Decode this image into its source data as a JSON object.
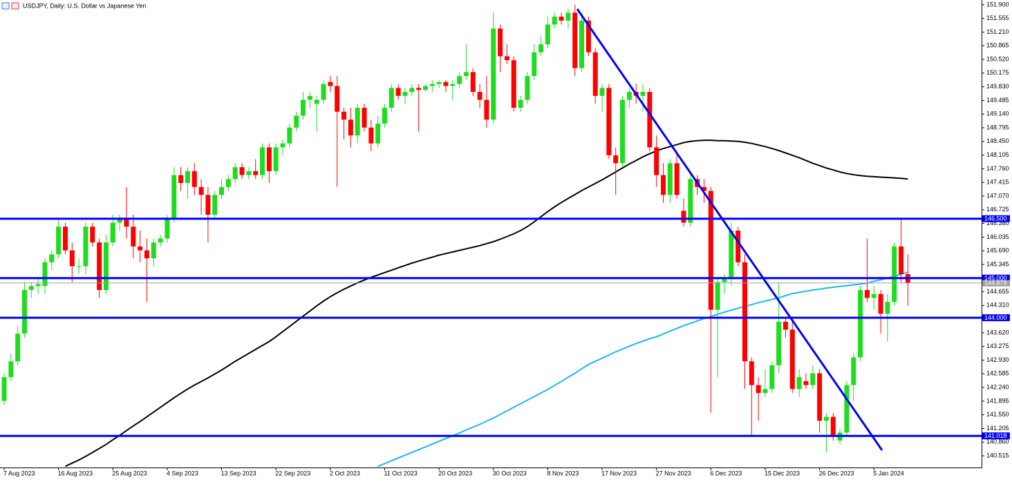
{
  "chart_data": {
    "type": "candlestick",
    "title": "USDJPY, Daily:  U.S. Dollar vs Japanese Yen",
    "up_color": "#1fdc1f",
    "down_color": "#ff0000",
    "ylim": [
      140.22,
      152.02
    ],
    "yticks": [
      {
        "value": 151.9,
        "label": "151.900"
      },
      {
        "value": 151.555,
        "label": "151.555"
      },
      {
        "value": 151.21,
        "label": "151.210"
      },
      {
        "value": 150.865,
        "label": "150.865"
      },
      {
        "value": 150.52,
        "label": "150.520"
      },
      {
        "value": 150.175,
        "label": "150.175"
      },
      {
        "value": 149.83,
        "label": "149.830"
      },
      {
        "value": 149.485,
        "label": "149.485"
      },
      {
        "value": 149.14,
        "label": "149.140"
      },
      {
        "value": 148.795,
        "label": "148.795"
      },
      {
        "value": 148.45,
        "label": "148.450"
      },
      {
        "value": 148.105,
        "label": "148.105"
      },
      {
        "value": 147.76,
        "label": "147.760"
      },
      {
        "value": 147.415,
        "label": "147.415"
      },
      {
        "value": 147.07,
        "label": "147.070"
      },
      {
        "value": 146.725,
        "label": "146.725"
      },
      {
        "value": 146.38,
        "label": "146.380"
      },
      {
        "value": 146.035,
        "label": "146.035"
      },
      {
        "value": 145.69,
        "label": "145.690"
      },
      {
        "value": 145.345,
        "label": "145.345"
      },
      {
        "value": 144.655,
        "label": "144.655"
      },
      {
        "value": 144.31,
        "label": "144.310"
      },
      {
        "value": 143.62,
        "label": "143.620"
      },
      {
        "value": 143.275,
        "label": "143.275"
      },
      {
        "value": 142.93,
        "label": "142.930"
      },
      {
        "value": 142.585,
        "label": "142.585"
      },
      {
        "value": 142.24,
        "label": "142.240"
      },
      {
        "value": 141.895,
        "label": "141.895"
      },
      {
        "value": 141.55,
        "label": "141.550"
      },
      {
        "value": 141.205,
        "label": "141.205"
      },
      {
        "value": 140.86,
        "label": "140.860"
      },
      {
        "value": 140.515,
        "label": "140.515"
      }
    ],
    "levels": [
      {
        "value": 146.5,
        "label": "146.500",
        "color": "#0000ff"
      },
      {
        "value": 145.0,
        "label": "145.000",
        "color": "#0000ff"
      },
      {
        "value": 144.0,
        "label": "144.000",
        "color": "#0000ff"
      },
      {
        "value": 141.018,
        "label": "141.018",
        "color": "#0000ff"
      }
    ],
    "last_price": {
      "value": 144.879,
      "label": "144.879",
      "color": "#a0a0a0"
    },
    "categories": [
      "7 Aug 2023",
      null,
      null,
      null,
      null,
      null,
      null,
      null,
      "16 Aug 2023",
      null,
      null,
      null,
      null,
      null,
      null,
      null,
      "25 Aug 2023",
      null,
      null,
      null,
      null,
      null,
      null,
      null,
      "4 Sep 2023",
      null,
      null,
      null,
      null,
      null,
      null,
      null,
      "13 Sep 2023",
      null,
      null,
      null,
      null,
      null,
      null,
      null,
      "22 Sep 2023",
      null,
      null,
      null,
      null,
      null,
      null,
      null,
      "2 Oct 2023",
      null,
      null,
      null,
      null,
      null,
      null,
      null,
      "11 Oct 2023",
      null,
      null,
      null,
      null,
      null,
      null,
      null,
      "20 Oct 2023",
      null,
      null,
      null,
      null,
      null,
      null,
      null,
      "30 Oct 2023",
      null,
      null,
      null,
      null,
      null,
      null,
      null,
      "8 Nov 2023",
      null,
      null,
      null,
      null,
      null,
      null,
      null,
      "17 Nov 2023",
      null,
      null,
      null,
      null,
      null,
      null,
      null,
      "27 Nov 2023",
      null,
      null,
      null,
      null,
      null,
      null,
      null,
      "6 Dec 2023",
      null,
      null,
      null,
      null,
      null,
      null,
      null,
      "15 Dec 2023",
      null,
      null,
      null,
      null,
      null,
      null,
      null,
      "26 Dec 2023",
      null,
      null,
      null,
      null,
      null,
      null,
      null,
      "5 Jan 2024",
      null,
      null,
      null,
      null,
      null
    ],
    "candles": [
      [
        141.9,
        142.6,
        141.8,
        142.5
      ],
      [
        142.5,
        143.1,
        142.4,
        142.9
      ],
      [
        142.9,
        143.8,
        142.8,
        143.6
      ],
      [
        143.6,
        144.9,
        143.5,
        144.7
      ],
      [
        144.7,
        144.9,
        144.5,
        144.8
      ],
      [
        144.8,
        145.0,
        144.6,
        144.85
      ],
      [
        144.8,
        145.5,
        144.6,
        145.4
      ],
      [
        145.4,
        145.7,
        145.2,
        145.6
      ],
      [
        145.6,
        146.5,
        145.5,
        146.3
      ],
      [
        146.3,
        146.4,
        145.6,
        145.7
      ],
      [
        145.7,
        145.9,
        144.9,
        145.3
      ],
      [
        145.3,
        145.5,
        145.1,
        145.3
      ],
      [
        145.3,
        146.4,
        145.1,
        146.3
      ],
      [
        146.3,
        146.4,
        145.8,
        145.9
      ],
      [
        145.9,
        146.0,
        144.5,
        144.7
      ],
      [
        144.7,
        146.1,
        144.6,
        145.9
      ],
      [
        145.9,
        146.6,
        145.8,
        146.4
      ],
      [
        146.4,
        146.6,
        146.2,
        146.5
      ],
      [
        146.5,
        147.3,
        146.0,
        146.3
      ],
      [
        146.3,
        146.6,
        145.5,
        145.8
      ],
      [
        145.8,
        146.2,
        145.4,
        145.7
      ],
      [
        145.7,
        146.0,
        144.4,
        145.5
      ],
      [
        145.5,
        146.0,
        145.3,
        145.9
      ],
      [
        145.9,
        146.1,
        145.8,
        146.0
      ],
      [
        146.0,
        146.6,
        145.9,
        146.5
      ],
      [
        146.5,
        147.8,
        146.4,
        147.6
      ],
      [
        147.6,
        147.8,
        147.2,
        147.4
      ],
      [
        147.4,
        147.8,
        147.0,
        147.7
      ],
      [
        147.7,
        147.9,
        147.1,
        147.3
      ],
      [
        147.3,
        147.5,
        146.6,
        147.1
      ],
      [
        147.1,
        147.3,
        145.9,
        146.6
      ],
      [
        146.6,
        147.2,
        146.5,
        147.1
      ],
      [
        147.1,
        147.5,
        147.0,
        147.3
      ],
      [
        147.3,
        147.6,
        147.2,
        147.5
      ],
      [
        147.5,
        147.9,
        147.4,
        147.8
      ],
      [
        147.8,
        147.9,
        147.5,
        147.6
      ],
      [
        147.6,
        147.8,
        147.5,
        147.7
      ],
      [
        147.7,
        148.0,
        147.5,
        147.6
      ],
      [
        147.6,
        148.4,
        147.5,
        148.3
      ],
      [
        148.3,
        148.4,
        147.4,
        147.7
      ],
      [
        147.7,
        148.4,
        147.6,
        148.3
      ],
      [
        148.3,
        148.5,
        148.1,
        148.4
      ],
      [
        148.4,
        148.9,
        148.3,
        148.8
      ],
      [
        148.8,
        149.2,
        148.7,
        149.1
      ],
      [
        149.1,
        149.7,
        149.0,
        149.5
      ],
      [
        149.5,
        149.7,
        149.3,
        149.6
      ],
      [
        149.4,
        149.6,
        148.7,
        149.5
      ],
      [
        149.5,
        150.0,
        149.4,
        149.9
      ],
      [
        149.95,
        150.1,
        149.7,
        149.85
      ],
      [
        149.85,
        150.1,
        147.3,
        149.2
      ],
      [
        149.2,
        149.3,
        148.5,
        149.0
      ],
      [
        149.0,
        149.3,
        148.3,
        148.6
      ],
      [
        148.6,
        149.4,
        148.4,
        149.3
      ],
      [
        149.3,
        149.4,
        148.7,
        148.8
      ],
      [
        148.8,
        149.0,
        148.2,
        148.4
      ],
      [
        148.4,
        149.1,
        148.3,
        148.9
      ],
      [
        148.9,
        149.4,
        148.8,
        149.3
      ],
      [
        149.3,
        149.9,
        149.2,
        149.8
      ],
      [
        149.8,
        149.9,
        149.5,
        149.6
      ],
      [
        149.6,
        149.8,
        149.4,
        149.7
      ],
      [
        149.7,
        149.9,
        149.6,
        149.8
      ],
      [
        149.8,
        149.9,
        148.7,
        149.75
      ],
      [
        149.75,
        149.9,
        149.7,
        149.85
      ],
      [
        149.85,
        150.0,
        149.7,
        149.9
      ],
      [
        149.9,
        150.0,
        149.8,
        149.95
      ],
      [
        149.95,
        150.0,
        149.7,
        149.85
      ],
      [
        149.85,
        150.0,
        149.5,
        149.9
      ],
      [
        149.9,
        150.2,
        149.8,
        150.1
      ],
      [
        150.1,
        150.9,
        150.0,
        150.2
      ],
      [
        150.2,
        150.3,
        149.6,
        149.7
      ],
      [
        149.7,
        149.9,
        149.3,
        149.5
      ],
      [
        149.5,
        150.1,
        148.8,
        149.0
      ],
      [
        149.0,
        151.7,
        148.9,
        151.3
      ],
      [
        151.3,
        151.4,
        150.2,
        150.6
      ],
      [
        150.6,
        150.9,
        150.4,
        150.5
      ],
      [
        150.5,
        150.6,
        149.2,
        149.3
      ],
      [
        149.3,
        149.6,
        149.2,
        149.5
      ],
      [
        149.5,
        150.2,
        149.4,
        150.1
      ],
      [
        150.1,
        150.9,
        150.0,
        150.7
      ],
      [
        150.7,
        151.1,
        150.6,
        150.9
      ],
      [
        150.9,
        151.6,
        150.8,
        151.4
      ],
      [
        151.4,
        151.7,
        151.3,
        151.6
      ],
      [
        151.6,
        151.7,
        151.4,
        151.5
      ],
      [
        151.5,
        151.8,
        151.3,
        151.7
      ],
      [
        151.7,
        151.9,
        150.1,
        150.3
      ],
      [
        150.3,
        151.7,
        150.2,
        151.5
      ],
      [
        151.5,
        151.6,
        150.6,
        150.7
      ],
      [
        150.7,
        150.8,
        149.4,
        149.6
      ],
      [
        149.6,
        149.9,
        149.2,
        149.8
      ],
      [
        149.8,
        149.9,
        148.0,
        148.1
      ],
      [
        148.1,
        148.3,
        147.1,
        147.9
      ],
      [
        147.9,
        149.6,
        147.8,
        149.5
      ],
      [
        149.5,
        149.8,
        149.3,
        149.7
      ],
      [
        149.7,
        149.9,
        149.4,
        149.6
      ],
      [
        149.6,
        149.9,
        149.2,
        149.7
      ],
      [
        149.7,
        149.8,
        148.2,
        148.3
      ],
      [
        148.3,
        148.6,
        147.3,
        147.6
      ],
      [
        147.6,
        147.9,
        146.9,
        147.1
      ],
      [
        147.1,
        148.0,
        146.9,
        147.9
      ],
      [
        147.9,
        148.2,
        147.0,
        147.1
      ],
      [
        146.7,
        147.0,
        146.3,
        146.4
      ],
      [
        146.4,
        147.6,
        146.3,
        147.5
      ],
      [
        147.5,
        147.6,
        147.1,
        147.3
      ],
      [
        147.3,
        147.5,
        146.9,
        147.2
      ],
      [
        147.2,
        147.3,
        141.6,
        144.2
      ],
      [
        144.2,
        145.0,
        142.5,
        144.9
      ],
      [
        144.9,
        145.1,
        144.6,
        145.0
      ],
      [
        145.0,
        146.4,
        144.8,
        146.2
      ],
      [
        146.2,
        146.3,
        145.3,
        145.4
      ],
      [
        145.4,
        145.6,
        142.2,
        142.9
      ],
      [
        142.9,
        143.0,
        141.0,
        142.3
      ],
      [
        142.3,
        142.5,
        141.4,
        142.1
      ],
      [
        142.1,
        142.7,
        142.0,
        142.2
      ],
      [
        142.2,
        142.9,
        142.1,
        142.8
      ],
      [
        142.8,
        144.9,
        142.6,
        143.9
      ],
      [
        143.9,
        144.0,
        143.5,
        143.7
      ],
      [
        143.7,
        143.9,
        142.1,
        142.2
      ],
      [
        142.2,
        142.7,
        142.0,
        142.5
      ],
      [
        142.4,
        142.6,
        142.2,
        142.3
      ],
      [
        142.3,
        142.8,
        142.2,
        142.6
      ],
      [
        142.6,
        142.7,
        141.1,
        141.4
      ],
      [
        141.4,
        141.6,
        140.6,
        141.5
      ],
      [
        141.5,
        141.6,
        140.9,
        141.0
      ],
      [
        140.9,
        141.2,
        140.8,
        141.1
      ],
      [
        141.1,
        142.4,
        141.0,
        142.3
      ],
      [
        142.3,
        143.1,
        141.9,
        143.0
      ],
      [
        143.0,
        144.8,
        142.9,
        144.7
      ],
      [
        144.7,
        146.0,
        144.4,
        144.5
      ],
      [
        144.5,
        144.8,
        144.2,
        144.6
      ],
      [
        144.6,
        144.7,
        143.6,
        144.1
      ],
      [
        144.1,
        144.6,
        143.4,
        144.4
      ],
      [
        144.4,
        145.9,
        144.3,
        145.8
      ],
      [
        145.8,
        146.5,
        144.9,
        145.1
      ],
      [
        145.1,
        145.6,
        144.3,
        144.879
      ]
    ],
    "moving_averages": [
      {
        "color": "#000000",
        "values": [
          null,
          null,
          null,
          null,
          null,
          null,
          null,
          null,
          null,
          140.25,
          140.33,
          140.41,
          140.5,
          140.6,
          140.7,
          140.8,
          140.92,
          141.03,
          141.15,
          141.27,
          141.38,
          141.5,
          141.62,
          141.74,
          141.86,
          141.98,
          142.09,
          142.2,
          142.3,
          142.39,
          142.48,
          142.58,
          142.68,
          142.79,
          142.9,
          143.0,
          143.1,
          143.2,
          143.3,
          143.4,
          143.52,
          143.65,
          143.78,
          143.91,
          144.04,
          144.17,
          144.3,
          144.42,
          144.53,
          144.63,
          144.72,
          144.8,
          144.88,
          144.95,
          145.02,
          145.08,
          145.14,
          145.2,
          145.26,
          145.32,
          145.38,
          145.43,
          145.48,
          145.53,
          145.58,
          145.62,
          145.66,
          145.7,
          145.74,
          145.78,
          145.82,
          145.87,
          145.92,
          145.98,
          146.05,
          146.12,
          146.2,
          146.3,
          146.42,
          146.55,
          146.68,
          146.8,
          146.91,
          147.01,
          147.11,
          147.21,
          147.3,
          147.39,
          147.48,
          147.58,
          147.68,
          147.78,
          147.88,
          147.97,
          148.06,
          148.14,
          148.21,
          148.27,
          148.32,
          148.37,
          148.42,
          148.45,
          148.47,
          148.48,
          148.48,
          148.47,
          148.47,
          148.46,
          148.45,
          148.43,
          148.4,
          148.36,
          148.32,
          148.27,
          148.22,
          148.16,
          148.1,
          148.04,
          147.97,
          147.9,
          147.84,
          147.78,
          147.73,
          147.68,
          147.64,
          147.61,
          147.59,
          147.57,
          147.56,
          147.55,
          147.54,
          147.53,
          147.52,
          147.5
        ]
      },
      {
        "color": "#1ab8f0",
        "values": [
          null,
          null,
          null,
          null,
          null,
          null,
          null,
          null,
          null,
          null,
          null,
          null,
          null,
          null,
          null,
          null,
          null,
          null,
          null,
          null,
          null,
          null,
          null,
          null,
          null,
          null,
          null,
          null,
          null,
          null,
          null,
          null,
          null,
          null,
          null,
          null,
          null,
          null,
          null,
          null,
          null,
          null,
          null,
          null,
          null,
          null,
          null,
          null,
          null,
          null,
          null,
          null,
          null,
          null,
          null,
          140.25,
          140.32,
          140.39,
          140.46,
          140.53,
          140.6,
          140.67,
          140.74,
          140.81,
          140.88,
          140.95,
          141.02,
          141.09,
          141.17,
          141.24,
          141.31,
          141.39,
          141.47,
          141.56,
          141.65,
          141.74,
          141.83,
          141.92,
          142.01,
          142.1,
          142.19,
          142.29,
          142.39,
          142.5,
          142.6,
          142.71,
          142.82,
          142.9,
          142.98,
          143.06,
          143.14,
          143.21,
          143.28,
          143.35,
          143.41,
          143.47,
          143.52,
          143.59,
          143.66,
          143.73,
          143.8,
          143.86,
          143.92,
          143.98,
          144.03,
          144.09,
          144.14,
          144.19,
          144.24,
          144.29,
          144.33,
          144.38,
          144.42,
          144.46,
          144.5,
          144.56,
          144.61,
          144.64,
          144.67,
          144.7,
          144.72,
          144.75,
          144.77,
          144.79,
          144.81,
          144.83,
          144.85,
          144.87,
          144.92,
          144.96,
          145.0,
          145.05,
          145.1,
          145.15
        ]
      }
    ]
  }
}
